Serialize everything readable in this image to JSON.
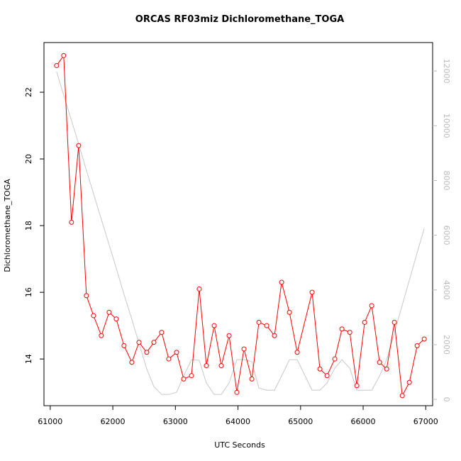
{
  "chart_data": {
    "type": "line",
    "title": "ORCAS RF03miz Dichloromethane_TOGA",
    "x_label": "UTC Seconds",
    "y_label": "Dichloromethane_TOGA",
    "x": [
      61102,
      61215,
      61340,
      61454,
      61578,
      61692,
      61816,
      61941,
      62055,
      62179,
      62304,
      62418,
      62542,
      62656,
      62780,
      62894,
      63019,
      63132,
      63257,
      63381,
      63495,
      63620,
      63733,
      63858,
      63982,
      64096,
      64221,
      64334,
      64459,
      64583,
      64697,
      64822,
      64946,
      65184,
      65309,
      65423,
      65547,
      65661,
      65786,
      65899,
      66024,
      66137,
      66262,
      66375,
      66500,
      66625,
      66738,
      66863,
      66976
    ],
    "series": [
      {
        "color": "#ff0000",
        "axis": "y",
        "markers": true,
        "values": [
          22.8,
          23.1,
          18.1,
          20.4,
          15.9,
          15.3,
          14.7,
          15.4,
          15.2,
          14.4,
          13.9,
          14.5,
          14.2,
          14.5,
          14.8,
          14.0,
          14.2,
          13.4,
          13.5,
          16.1,
          13.8,
          15.0,
          13.8,
          14.7,
          13.0,
          14.3,
          13.4,
          15.1,
          15.0,
          14.7,
          16.3,
          15.4,
          14.2,
          16.0,
          13.7,
          13.5,
          14.0,
          14.9,
          14.8,
          13.2,
          15.1,
          15.6,
          13.9,
          13.7,
          15.1,
          12.9,
          13.3,
          14.4,
          14.6
        ]
      },
      {
        "color": "#c8c8c8",
        "axis": "y2",
        "markers": false,
        "values": [
          11975,
          11120,
          10185,
          9330,
          8370,
          7515,
          6585,
          5650,
          4795,
          3835,
          2930,
          2050,
          1115,
          465,
          180,
          180,
          260,
          855,
          1450,
          1425,
          600,
          180,
          180,
          600,
          1450,
          1450,
          1375,
          415,
          335,
          335,
          855,
          1450,
          1450,
          335,
          335,
          600,
          1140,
          1450,
          1140,
          335,
          335,
          335,
          855,
          1450,
          2435,
          3450,
          4355,
          5365,
          6245
        ]
      }
    ],
    "xlim": [
      60900,
      67110
    ],
    "xticks": [
      61000,
      62000,
      63000,
      64000,
      65000,
      66000,
      67000
    ],
    "ylim": [
      12.6,
      23.49
    ],
    "yticks": [
      14,
      16,
      18,
      20,
      22
    ],
    "y2lim": [
      -230,
      13040
    ],
    "y2ticks": [
      0,
      2000,
      4000,
      6000,
      8000,
      10000,
      12000
    ]
  }
}
